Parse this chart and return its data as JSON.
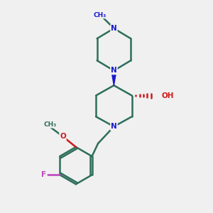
{
  "bg_color": "#f0f0f0",
  "bond_color": "#2d6e5a",
  "N_color": "#1a1acc",
  "O_color": "#cc1a1a",
  "F_color": "#bb44bb",
  "lw": 1.8,
  "figsize": [
    3.0,
    3.0
  ],
  "dpi": 100,
  "xlim": [
    0,
    10
  ],
  "ylim": [
    0,
    10
  ]
}
